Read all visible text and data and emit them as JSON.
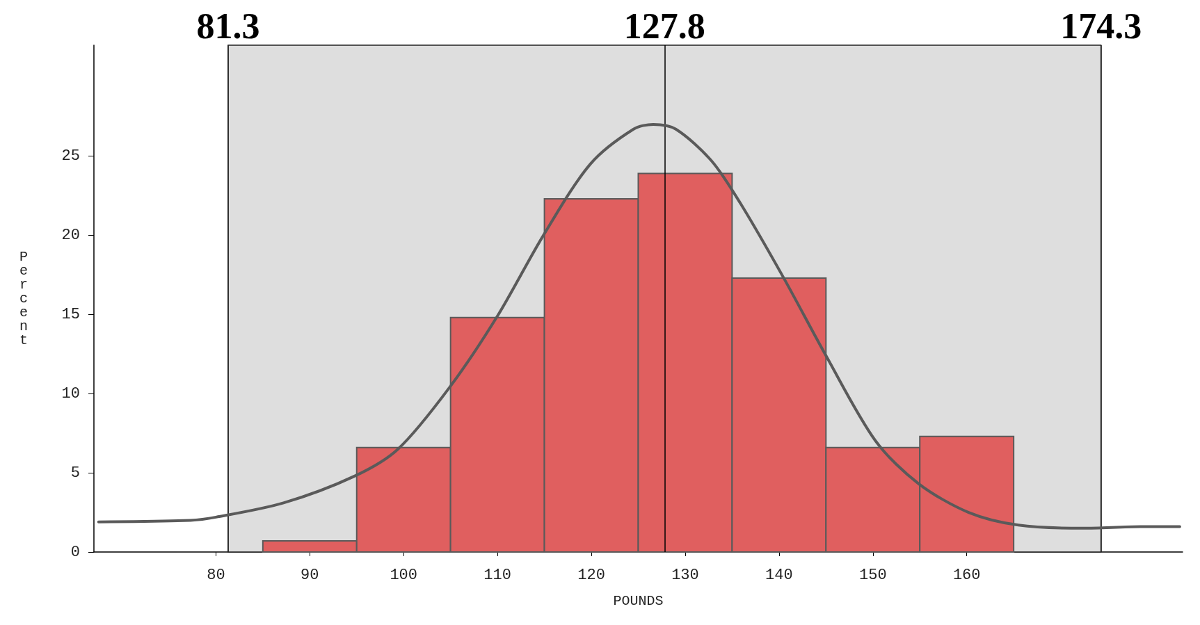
{
  "chart_data": {
    "type": "histogram",
    "xlabel": "POUNDS",
    "ylabel": "Percent",
    "bins": [
      85,
      95,
      105,
      115,
      125,
      135,
      145,
      155,
      165
    ],
    "values": [
      0.7,
      6.6,
      14.8,
      22.3,
      23.9,
      17.3,
      6.6,
      7.3
    ],
    "color": "#e05f5f",
    "series": [
      {
        "type": "line",
        "color": "#5a5a5a",
        "x": [
          67.5,
          77.3,
          80,
          87.2,
          94.8,
          99.4,
          104.9,
          110,
          114.9,
          119.9,
          124.5,
          126.6,
          129,
          132.8,
          135.9,
          140.5,
          145,
          150.3,
          154.9,
          160.2,
          165.5,
          172.4,
          178.5,
          182.7
        ],
        "values": [
          1.9,
          2.0,
          2.2,
          3.1,
          4.8,
          6.5,
          10.4,
          14.9,
          20,
          24.5,
          26.7,
          27,
          26.7,
          24.7,
          22,
          17.3,
          12.4,
          7,
          4.3,
          2.5,
          1.7,
          1.5,
          1.6,
          1.6
        ]
      }
    ],
    "bands": [
      {
        "axis": "x",
        "from": 81.3,
        "to": 174.3,
        "color": "#dedede"
      }
    ],
    "ref_lines": [
      {
        "axis": "x",
        "value": 81.3,
        "label": "81.3",
        "color": "#222222"
      },
      {
        "axis": "x",
        "value": 127.8,
        "label": "127.8",
        "color": "#000000"
      },
      {
        "axis": "x",
        "value": 174.3,
        "label": "174.3",
        "color": "#222222"
      }
    ],
    "xlim": [
      67,
      183
    ],
    "xticks": [
      80,
      90,
      100,
      110,
      120,
      130,
      140,
      150,
      160
    ],
    "ylim": [
      0,
      32
    ],
    "yticks": [
      0,
      5,
      10,
      15,
      20,
      25
    ],
    "grid": false
  }
}
